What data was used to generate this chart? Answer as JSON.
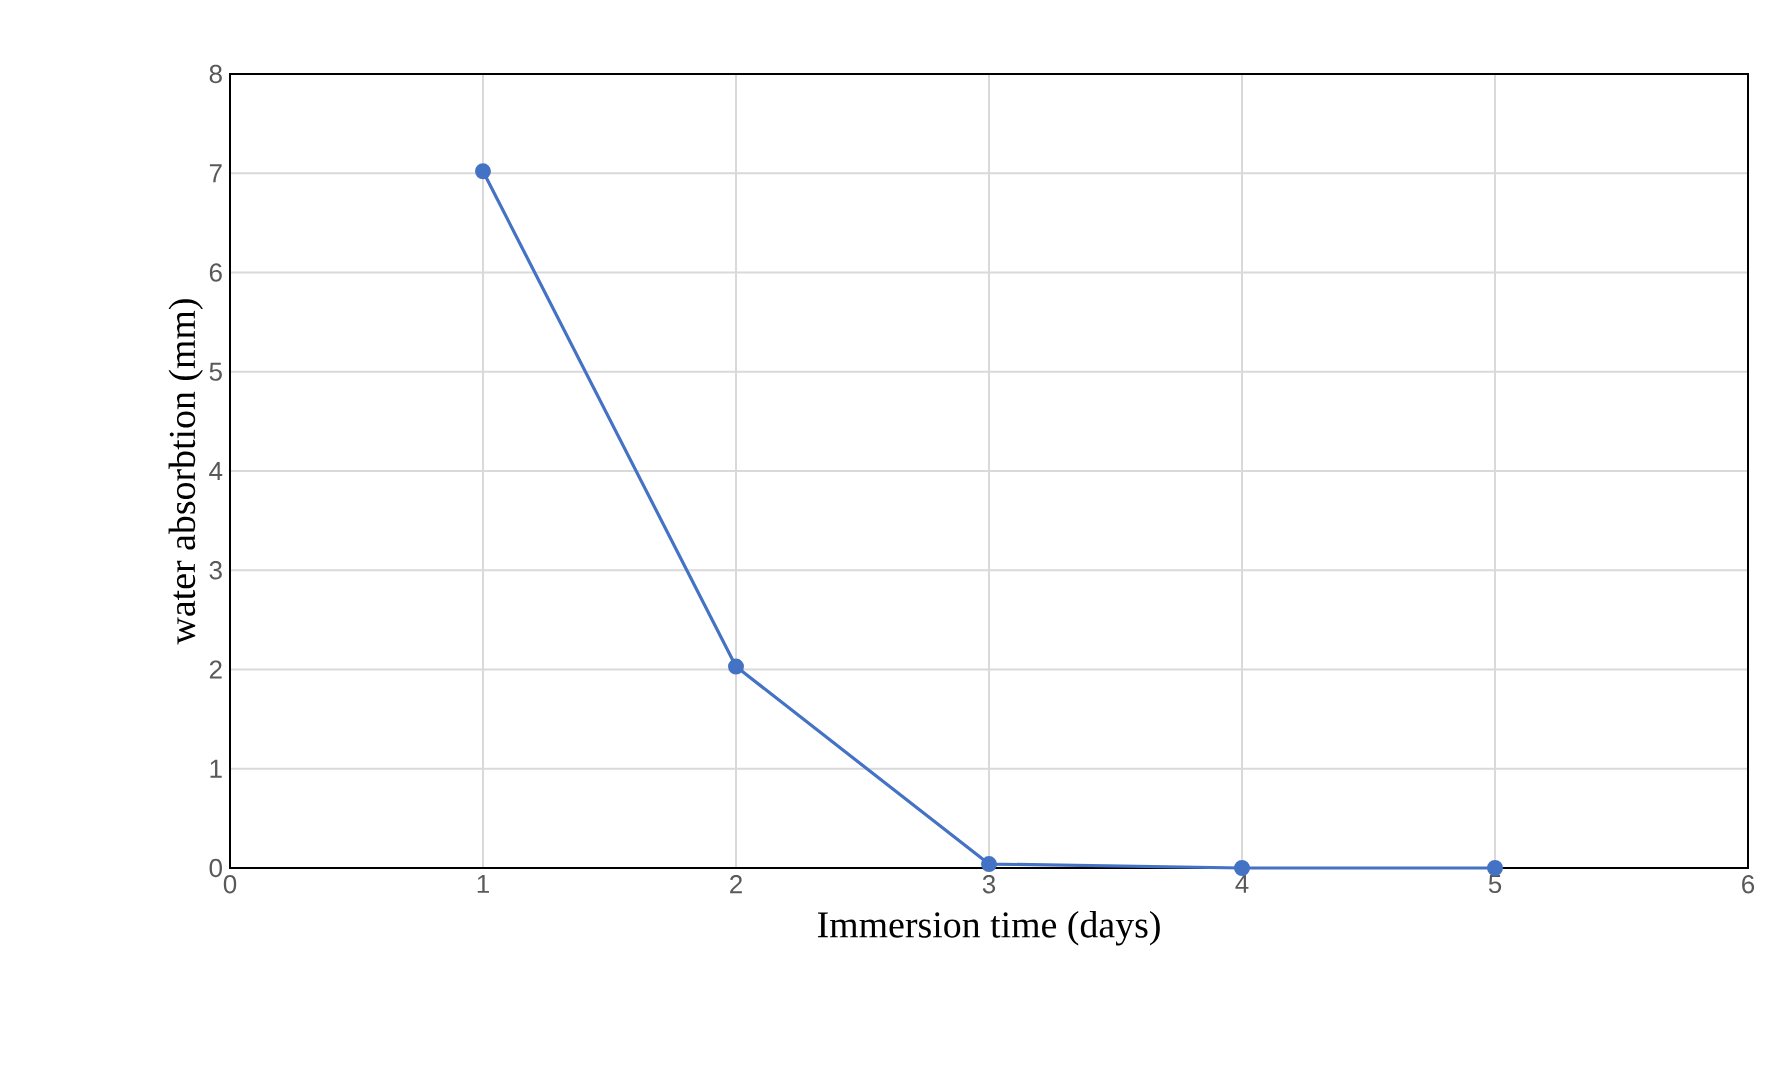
{
  "chart_data": {
    "type": "line",
    "xlabel": "Immersion time (days)",
    "ylabel": "water absorbtion (mm)",
    "x": [
      1,
      2,
      3,
      4,
      5
    ],
    "series": [
      {
        "color": "#4472c4",
        "values": [
          7.02,
          2.03,
          0.04,
          0,
          0
        ]
      }
    ],
    "xlim": [
      0,
      6
    ],
    "xticks": [
      0,
      1,
      2,
      3,
      4,
      5,
      6
    ],
    "ylim": [
      0,
      8
    ],
    "yticks": [
      0,
      1,
      2,
      3,
      4,
      5,
      6,
      7,
      8
    ],
    "grid": true,
    "marker": "circle",
    "line_style": "solid"
  }
}
